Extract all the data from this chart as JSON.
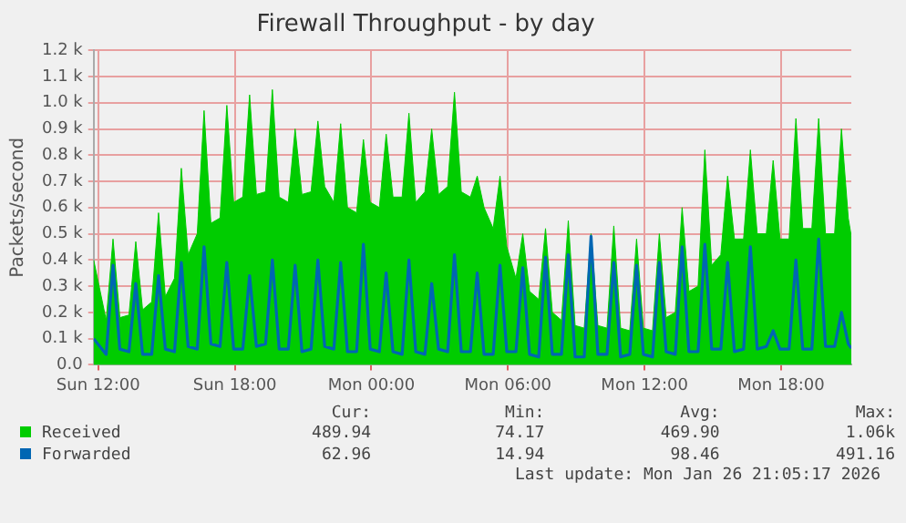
{
  "chart_data": {
    "type": "area",
    "title": "Firewall Throughput - by day",
    "ylabel": "Packets/second",
    "x": [
      "2026-01-25T11:48",
      "2026-01-25T12:21",
      "2026-01-25T12:39",
      "2026-01-25T12:57",
      "2026-01-25T13:21",
      "2026-01-25T13:39",
      "2026-01-25T13:57",
      "2026-01-25T14:21",
      "2026-01-25T14:39",
      "2026-01-25T14:57",
      "2026-01-25T15:21",
      "2026-01-25T15:39",
      "2026-01-25T15:57",
      "2026-01-25T16:21",
      "2026-01-25T16:39",
      "2026-01-25T16:57",
      "2026-01-25T17:21",
      "2026-01-25T17:39",
      "2026-01-25T17:57",
      "2026-01-25T18:21",
      "2026-01-25T18:39",
      "2026-01-25T18:57",
      "2026-01-25T19:21",
      "2026-01-25T19:39",
      "2026-01-25T19:57",
      "2026-01-25T20:21",
      "2026-01-25T20:39",
      "2026-01-25T20:57",
      "2026-01-25T21:21",
      "2026-01-25T21:39",
      "2026-01-25T21:57",
      "2026-01-25T22:21",
      "2026-01-25T22:39",
      "2026-01-25T22:57",
      "2026-01-25T23:21",
      "2026-01-25T23:39",
      "2026-01-25T23:57",
      "2026-01-26T00:21",
      "2026-01-26T00:39",
      "2026-01-26T00:57",
      "2026-01-26T01:21",
      "2026-01-26T01:39",
      "2026-01-26T01:57",
      "2026-01-26T02:21",
      "2026-01-26T02:39",
      "2026-01-26T02:57",
      "2026-01-26T03:21",
      "2026-01-26T03:39",
      "2026-01-26T03:57",
      "2026-01-26T04:21",
      "2026-01-26T04:39",
      "2026-01-26T04:57",
      "2026-01-26T05:21",
      "2026-01-26T05:39",
      "2026-01-26T05:57",
      "2026-01-26T06:21",
      "2026-01-26T06:39",
      "2026-01-26T06:57",
      "2026-01-26T07:21",
      "2026-01-26T07:39",
      "2026-01-26T07:57",
      "2026-01-26T08:21",
      "2026-01-26T08:39",
      "2026-01-26T08:57",
      "2026-01-26T09:21",
      "2026-01-26T09:39",
      "2026-01-26T09:57",
      "2026-01-26T10:21",
      "2026-01-26T10:39",
      "2026-01-26T10:57",
      "2026-01-26T11:21",
      "2026-01-26T11:39",
      "2026-01-26T11:57",
      "2026-01-26T12:21",
      "2026-01-26T12:39",
      "2026-01-26T12:57",
      "2026-01-26T13:21",
      "2026-01-26T13:39",
      "2026-01-26T13:57",
      "2026-01-26T14:21",
      "2026-01-26T14:39",
      "2026-01-26T14:57",
      "2026-01-26T15:21",
      "2026-01-26T15:39",
      "2026-01-26T15:57",
      "2026-01-26T16:21",
      "2026-01-26T16:39",
      "2026-01-26T16:57",
      "2026-01-26T17:21",
      "2026-01-26T17:39",
      "2026-01-26T17:57",
      "2026-01-26T18:21",
      "2026-01-26T18:39",
      "2026-01-26T18:57",
      "2026-01-26T19:21",
      "2026-01-26T19:39",
      "2026-01-26T19:57",
      "2026-01-26T20:21",
      "2026-01-26T20:39",
      "2026-01-26T20:57",
      "2026-01-26T21:05"
    ],
    "series": [
      {
        "name": "Received",
        "color": "#00cc00",
        "values": [
          400,
          170,
          480,
          180,
          190,
          470,
          210,
          240,
          580,
          260,
          330,
          750,
          420,
          500,
          970,
          540,
          560,
          990,
          620,
          640,
          1030,
          650,
          660,
          1050,
          640,
          620,
          900,
          650,
          660,
          930,
          680,
          620,
          920,
          600,
          580,
          860,
          620,
          600,
          880,
          640,
          640,
          960,
          620,
          660,
          900,
          650,
          680,
          1040,
          660,
          640,
          720,
          600,
          520,
          720,
          450,
          330,
          500,
          280,
          250,
          520,
          200,
          170,
          550,
          150,
          140,
          500,
          150,
          140,
          530,
          140,
          130,
          480,
          140,
          130,
          500,
          180,
          200,
          600,
          280,
          300,
          820,
          380,
          420,
          720,
          480,
          480,
          820,
          500,
          500,
          780,
          480,
          480,
          940,
          520,
          520,
          940,
          500,
          500,
          900,
          560,
          490
        ]
      },
      {
        "name": "Forwarded",
        "color": "#0066b3",
        "type": "line",
        "values": [
          100,
          40,
          380,
          60,
          50,
          310,
          40,
          40,
          340,
          60,
          50,
          390,
          70,
          60,
          450,
          80,
          70,
          390,
          60,
          60,
          340,
          70,
          80,
          400,
          60,
          60,
          380,
          50,
          60,
          400,
          70,
          60,
          390,
          50,
          50,
          460,
          60,
          50,
          350,
          50,
          40,
          400,
          50,
          40,
          310,
          60,
          50,
          420,
          50,
          50,
          350,
          40,
          40,
          380,
          50,
          50,
          370,
          40,
          30,
          410,
          40,
          40,
          420,
          30,
          30,
          490,
          40,
          40,
          390,
          30,
          40,
          380,
          40,
          30,
          390,
          50,
          40,
          450,
          50,
          50,
          460,
          60,
          60,
          390,
          50,
          60,
          450,
          60,
          70,
          130,
          60,
          60,
          400,
          60,
          60,
          480,
          70,
          70,
          200,
          80,
          63
        ]
      }
    ],
    "xlim": [
      "2026-01-25T11:48",
      "2026-01-26T21:05"
    ],
    "xticks": [
      {
        "value": "2026-01-25T12:00",
        "label": "Sun 12:00"
      },
      {
        "value": "2026-01-25T18:00",
        "label": "Sun 18:00"
      },
      {
        "value": "2026-01-26T00:00",
        "label": "Mon 00:00"
      },
      {
        "value": "2026-01-26T06:00",
        "label": "Mon 06:00"
      },
      {
        "value": "2026-01-26T12:00",
        "label": "Mon 12:00"
      },
      {
        "value": "2026-01-26T18:00",
        "label": "Mon 18:00"
      }
    ],
    "ylim": [
      0,
      1200
    ],
    "yticks": [
      {
        "value": 0,
        "label": "0.0"
      },
      {
        "value": 100,
        "label": "0.1 k"
      },
      {
        "value": 200,
        "label": "0.2 k"
      },
      {
        "value": 300,
        "label": "0.3 k"
      },
      {
        "value": 400,
        "label": "0.4 k"
      },
      {
        "value": 500,
        "label": "0.5 k"
      },
      {
        "value": 600,
        "label": "0.6 k"
      },
      {
        "value": 700,
        "label": "0.7 k"
      },
      {
        "value": 800,
        "label": "0.8 k"
      },
      {
        "value": 900,
        "label": "0.9 k"
      },
      {
        "value": 1000,
        "label": "1.0 k"
      },
      {
        "value": 1100,
        "label": "1.1 k"
      },
      {
        "value": 1200,
        "label": "1.2 k"
      }
    ],
    "grid": true,
    "legend": "bottom",
    "annotations": [
      "Cur:",
      "Min:",
      "Avg:",
      "Max:",
      "489.94",
      "74.17",
      "469.90",
      "1.06k",
      "62.96",
      "14.94",
      "98.46",
      "491.16",
      "Last update: Mon Jan 26 21:05:17 2026"
    ]
  }
}
